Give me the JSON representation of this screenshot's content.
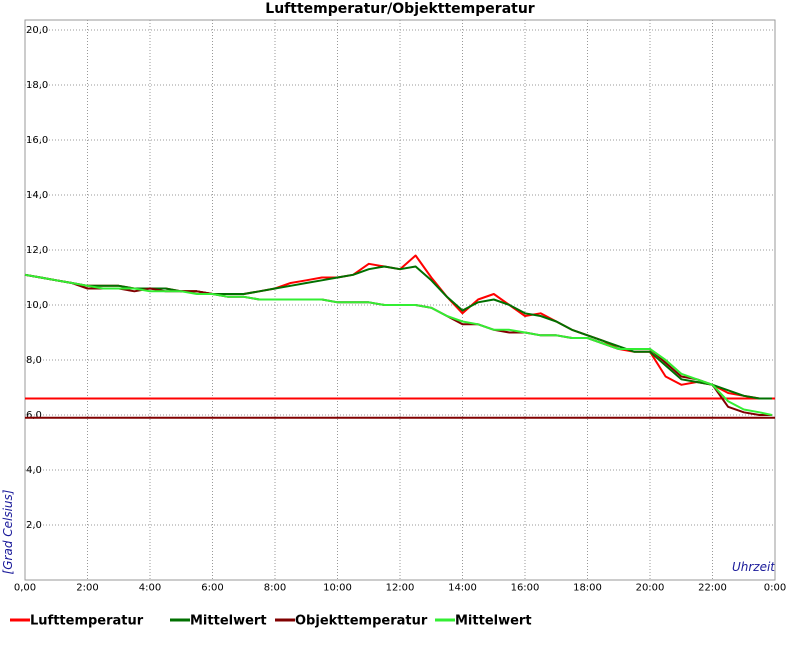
{
  "chart_data": {
    "type": "line",
    "title": "Lufttemperatur/Objekttemperatur",
    "y_label": "[Grad Celsius]",
    "x_label": "Uhrzeit",
    "xlim": [
      0,
      24
    ],
    "ylim": [
      0,
      20
    ],
    "xticks": [
      {
        "value": 0,
        "label": "0,00"
      },
      {
        "value": 2,
        "label": "2:00"
      },
      {
        "value": 4,
        "label": "4:00"
      },
      {
        "value": 6,
        "label": "6:00"
      },
      {
        "value": 8,
        "label": "8:00"
      },
      {
        "value": 10,
        "label": "10:00"
      },
      {
        "value": 12,
        "label": "12:00"
      },
      {
        "value": 14,
        "label": "14:00"
      },
      {
        "value": 16,
        "label": "16:00"
      },
      {
        "value": 18,
        "label": "18:00"
      },
      {
        "value": 20,
        "label": "20:00"
      },
      {
        "value": 22,
        "label": "22:00"
      },
      {
        "value": 24,
        "label": "0:00"
      }
    ],
    "yticks": [
      {
        "value": 2,
        "label": "2,0"
      },
      {
        "value": 4,
        "label": "4,0"
      },
      {
        "value": 6,
        "label": "6,0"
      },
      {
        "value": 8,
        "label": "8,0"
      },
      {
        "value": 10,
        "label": "10,0"
      },
      {
        "value": 12,
        "label": "12,0"
      },
      {
        "value": 14,
        "label": "14,0"
      },
      {
        "value": 16,
        "label": "16,0"
      },
      {
        "value": 18,
        "label": "18,0"
      },
      {
        "value": 20,
        "label": "20,0"
      }
    ],
    "grid": true,
    "reference_lines": [
      {
        "value": 6.6,
        "color": "#ff0000"
      },
      {
        "value": 5.9,
        "color": "#800000"
      }
    ],
    "x": [
      0,
      0.5,
      1,
      1.5,
      2,
      2.5,
      3,
      3.5,
      4,
      4.5,
      5,
      5.5,
      6,
      6.5,
      7,
      7.5,
      8,
      8.5,
      9,
      9.5,
      10,
      10.5,
      11,
      11.5,
      12,
      12.5,
      13,
      13.5,
      14,
      14.5,
      15,
      15.5,
      16,
      16.5,
      17,
      17.5,
      18,
      18.5,
      19,
      19.5,
      20,
      20.5,
      21,
      21.5,
      22,
      22.5,
      23,
      23.5,
      23.9
    ],
    "series": [
      {
        "name": "Lufttemperatur",
        "color": "#ff0000",
        "width": 2,
        "values": [
          11.1,
          11.0,
          10.9,
          10.8,
          10.7,
          10.7,
          10.7,
          10.6,
          10.6,
          10.6,
          10.5,
          10.5,
          10.4,
          10.4,
          10.4,
          10.5,
          10.6,
          10.8,
          10.9,
          11.0,
          11.0,
          11.1,
          11.5,
          11.4,
          11.3,
          11.8,
          11.0,
          10.3,
          9.7,
          10.2,
          10.4,
          10.0,
          9.6,
          9.7,
          9.4,
          9.1,
          8.9,
          8.7,
          8.4,
          8.3,
          8.3,
          7.4,
          7.1,
          7.2,
          7.1,
          6.8,
          6.7,
          6.6,
          6.6
        ]
      },
      {
        "name": "Mittelwert",
        "color": "#007000",
        "width": 2,
        "values": [
          11.1,
          11.0,
          10.9,
          10.8,
          10.7,
          10.7,
          10.7,
          10.6,
          10.6,
          10.6,
          10.5,
          10.5,
          10.4,
          10.4,
          10.4,
          10.5,
          10.6,
          10.7,
          10.8,
          10.9,
          11.0,
          11.1,
          11.3,
          11.4,
          11.3,
          11.4,
          10.9,
          10.3,
          9.8,
          10.1,
          10.2,
          10.0,
          9.7,
          9.6,
          9.4,
          9.1,
          8.9,
          8.7,
          8.5,
          8.3,
          8.3,
          7.8,
          7.3,
          7.2,
          7.1,
          6.9,
          6.7,
          6.6,
          6.6
        ]
      },
      {
        "name": "Objekttemperatur",
        "color": "#800000",
        "width": 2,
        "values": [
          11.1,
          11.0,
          10.9,
          10.8,
          10.6,
          10.6,
          10.6,
          10.5,
          10.6,
          10.5,
          10.5,
          10.5,
          10.4,
          10.3,
          10.3,
          10.2,
          10.2,
          10.2,
          10.2,
          10.2,
          10.1,
          10.1,
          10.1,
          10.0,
          10.0,
          10.0,
          9.9,
          9.6,
          9.3,
          9.3,
          9.1,
          9.0,
          9.0,
          8.9,
          8.9,
          8.8,
          8.8,
          8.6,
          8.4,
          8.4,
          8.4,
          7.9,
          7.4,
          7.3,
          7.1,
          6.3,
          6.1,
          6.0,
          6.0
        ]
      },
      {
        "name": "Mittelwert",
        "color": "#33ee33",
        "width": 2,
        "values": [
          11.1,
          11.0,
          10.9,
          10.8,
          10.7,
          10.6,
          10.6,
          10.6,
          10.5,
          10.5,
          10.5,
          10.4,
          10.4,
          10.3,
          10.3,
          10.2,
          10.2,
          10.2,
          10.2,
          10.2,
          10.1,
          10.1,
          10.1,
          10.0,
          10.0,
          10.0,
          9.9,
          9.6,
          9.4,
          9.3,
          9.1,
          9.1,
          9.0,
          8.9,
          8.9,
          8.8,
          8.8,
          8.6,
          8.4,
          8.4,
          8.4,
          8.0,
          7.5,
          7.3,
          7.1,
          6.5,
          6.2,
          6.1,
          6.0
        ]
      }
    ]
  }
}
